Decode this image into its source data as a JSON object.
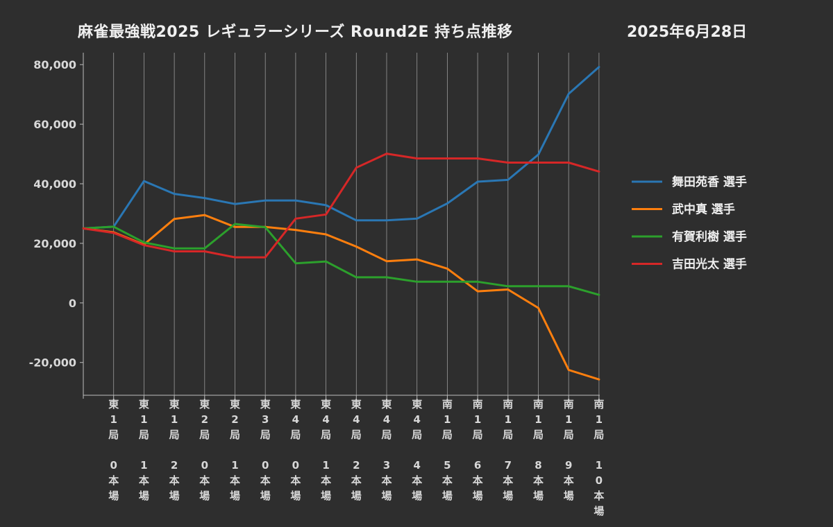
{
  "title": "麻雀最強戦2025 レギュラーシリーズ Round2E 持ち点推移",
  "date": "2025年6月28日",
  "chart_data": {
    "type": "line",
    "title": "麻雀最強戦2025 レギュラーシリーズ Round2E 持ち点推移",
    "subtitle": "2025年6月28日",
    "xlabel": "",
    "ylabel": "",
    "x": [
      "",
      "東1局0本場",
      "東1局1本場",
      "東1局2本場",
      "東2局0本場",
      "東2局1本場",
      "東3局0本場",
      "東4局0本場",
      "東4局1本場",
      "東4局2本場",
      "東4局3本場",
      "東4局4本場",
      "南1局5本場",
      "南1局6本場",
      "南1局7本場",
      "南1局8本場",
      "南1局9本場",
      "南1局10本場"
    ],
    "tick_labels": [
      [
        "",
        ""
      ],
      [
        "東1局",
        "0本場"
      ],
      [
        "東1局",
        "1本場"
      ],
      [
        "東1局",
        "2本場"
      ],
      [
        "東2局",
        "0本場"
      ],
      [
        "東2局",
        "1本場"
      ],
      [
        "東3局",
        "0本場"
      ],
      [
        "東4局",
        "0本場"
      ],
      [
        "東4局",
        "1本場"
      ],
      [
        "東4局",
        "2本場"
      ],
      [
        "東4局",
        "3本場"
      ],
      [
        "東4局",
        "4本場"
      ],
      [
        "南1局",
        "5本場"
      ],
      [
        "南1局",
        "6本場"
      ],
      [
        "南1局",
        "7本場"
      ],
      [
        "南1局",
        "8本場"
      ],
      [
        "南1局",
        "9本場"
      ],
      [
        "南1局",
        "10本場"
      ]
    ],
    "y_ticks": [
      80000,
      60000,
      40000,
      20000,
      0,
      -20000
    ],
    "y_tick_labels": [
      "80,000",
      "60,000",
      "40,000",
      "20,000",
      "0",
      "-20,000"
    ],
    "ylim": [
      -31000,
      84000
    ],
    "grid": "vertical",
    "legend_position": "right",
    "series": [
      {
        "name": "舞田苑香 選手",
        "color": "#2a77b4",
        "values": [
          25000,
          25600,
          40900,
          36600,
          35200,
          33200,
          34400,
          34400,
          32800,
          27700,
          27700,
          28300,
          33400,
          40700,
          41300,
          49800,
          70200,
          79200
        ]
      },
      {
        "name": "武中真 選手",
        "color": "#fe7f0e",
        "values": [
          25000,
          23700,
          19600,
          28200,
          29500,
          25500,
          25500,
          24500,
          23000,
          18900,
          14000,
          14600,
          11500,
          3900,
          4500,
          -1700,
          -22500,
          -25700
        ]
      },
      {
        "name": "有賀利樹 選手",
        "color": "#2ca02c",
        "values": [
          25000,
          25600,
          20300,
          18300,
          18300,
          26500,
          25400,
          13300,
          13900,
          8600,
          8600,
          7100,
          7100,
          7100,
          5600,
          5600,
          5600,
          2700
        ]
      },
      {
        "name": "吉田光太 選手",
        "color": "#d62727",
        "values": [
          25000,
          23500,
          19400,
          17300,
          17300,
          15300,
          15300,
          28300,
          29700,
          45400,
          50100,
          48500,
          48500,
          48500,
          47100,
          47100,
          47100,
          44100
        ]
      }
    ]
  }
}
